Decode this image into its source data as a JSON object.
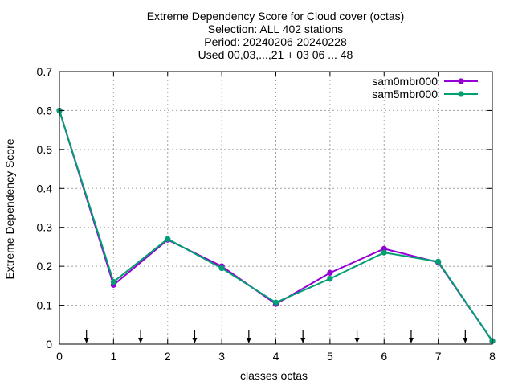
{
  "chart_data": {
    "type": "line",
    "title_lines": [
      "Extreme Dependency Score  for Cloud cover (octas)",
      "Selection: ALL    402 stations",
      "Period: 20240206-20240228",
      "Used 00,03,...,21 + 03 06 ... 48"
    ],
    "xlabel": "classes octas",
    "ylabel": "Extreme Dependency Score",
    "x": [
      0,
      1,
      2,
      3,
      4,
      5,
      6,
      7,
      8
    ],
    "xlim": [
      0,
      8
    ],
    "ylim": [
      0,
      0.7
    ],
    "x_ticks": [
      "0",
      "1",
      "2",
      "3",
      "4",
      "5",
      "6",
      "7",
      "8"
    ],
    "y_ticks": [
      "0",
      "0.1",
      "0.2",
      "0.3",
      "0.4",
      "0.5",
      "0.6",
      "0.7"
    ],
    "grid": true,
    "legend_position": "top-right",
    "series": [
      {
        "name": "sam0mbr000",
        "color": "#9400d3",
        "values": [
          0.6,
          0.152,
          0.268,
          0.2,
          0.103,
          0.183,
          0.245,
          0.21,
          0.008
        ]
      },
      {
        "name": "sam5mbr000",
        "color": "#009e73",
        "values": [
          0.6,
          0.16,
          0.27,
          0.195,
          0.107,
          0.168,
          0.235,
          0.212,
          0.008
        ]
      }
    ],
    "arrow_markers_x": [
      0.5,
      1.5,
      2.5,
      3.5,
      4.5,
      5.5,
      6.5,
      7.5
    ]
  }
}
